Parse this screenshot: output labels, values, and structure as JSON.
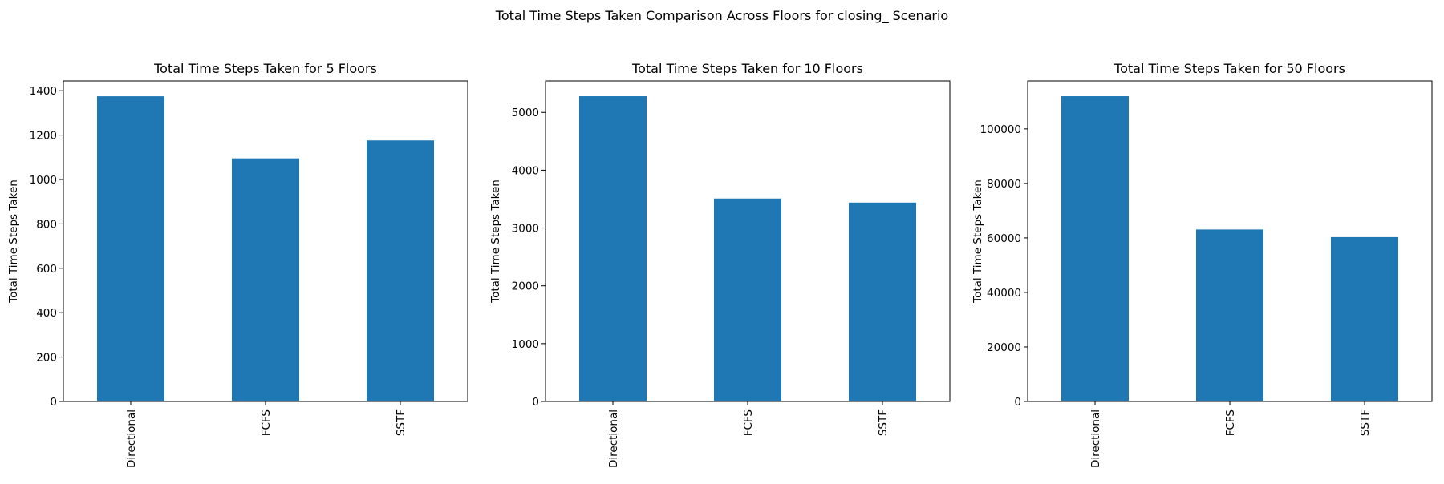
{
  "suptitle": "Total Time Steps Taken Comparison Across Floors for closing_ Scenario",
  "colors": {
    "bar": "#1f77b4",
    "axis": "#000000",
    "background": "#ffffff"
  },
  "chart_data": [
    {
      "type": "bar",
      "title": "Total Time Steps Taken for 5 Floors",
      "xlabel": "",
      "ylabel": "Total Time Steps Taken",
      "categories": [
        "Directional",
        "FCFS",
        "SSTF"
      ],
      "values": [
        1375,
        1095,
        1176
      ],
      "ylim": [
        0,
        1444
      ],
      "yticks": [
        0,
        200,
        400,
        600,
        800,
        1000,
        1200,
        1400
      ],
      "grid": false
    },
    {
      "type": "bar",
      "title": "Total Time Steps Taken for 10 Floors",
      "xlabel": "",
      "ylabel": "Total Time Steps Taken",
      "categories": [
        "Directional",
        "FCFS",
        "SSTF"
      ],
      "values": [
        5280,
        3510,
        3440
      ],
      "ylim": [
        0,
        5544
      ],
      "yticks": [
        0,
        1000,
        2000,
        3000,
        4000,
        5000
      ],
      "grid": false
    },
    {
      "type": "bar",
      "title": "Total Time Steps Taken for 50 Floors",
      "xlabel": "",
      "ylabel": "Total Time Steps Taken",
      "categories": [
        "Directional",
        "FCFS",
        "SSTF"
      ],
      "values": [
        112000,
        63100,
        60300
      ],
      "ylim": [
        0,
        117600
      ],
      "yticks": [
        0,
        20000,
        40000,
        60000,
        80000,
        100000
      ],
      "grid": false
    }
  ]
}
